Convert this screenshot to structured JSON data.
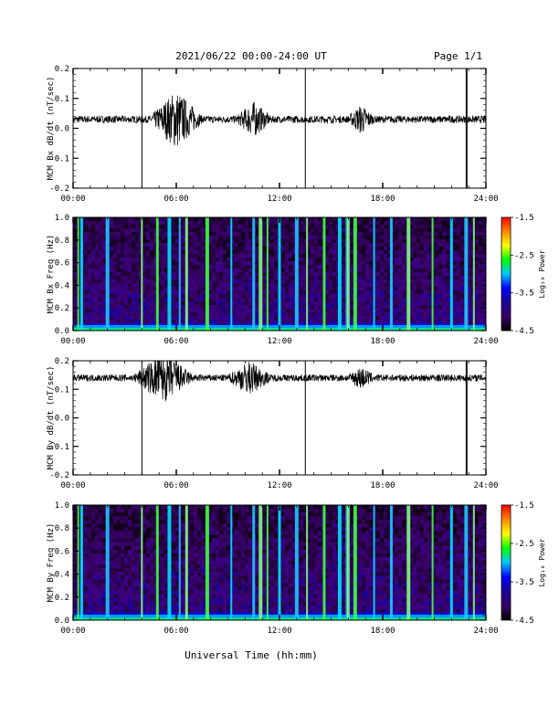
{
  "header": {
    "title": "2021/06/22  00:00-24:00 UT",
    "page": "Page 1/1"
  },
  "footer": {
    "xlabel": "Universal Time (hh:mm)"
  },
  "x_ticks": [
    "00:00",
    "06:00",
    "12:00",
    "18:00",
    "24:00"
  ],
  "chart_data": [
    {
      "type": "line",
      "ylabel": "MCM Bx dB/dt (nT/sec)",
      "xlim_hours": [
        0,
        24
      ],
      "ylim": [
        -0.2,
        0.2
      ],
      "y_ticks": [
        "0.2",
        "0.1",
        "0.0",
        "-0.1",
        "-0.2"
      ],
      "baseline": 0.03,
      "activity_windows_hours": [
        [
          4.5,
          7.5,
          0.09
        ],
        [
          9.5,
          11.5,
          0.05
        ],
        [
          16.0,
          17.5,
          0.04
        ]
      ],
      "spikes_hours": [
        4.0,
        13.5,
        22.85,
        22.9
      ]
    },
    {
      "type": "heatmap",
      "ylabel": "MCM Bx Freq (Hz)",
      "xlim_hours": [
        0,
        24
      ],
      "ylim": [
        0,
        1
      ],
      "y_ticks": [
        "1.0",
        "0.8",
        "0.6",
        "0.4",
        "0.2",
        "0.0"
      ],
      "colorbar": {
        "label": "Log₁₀ Power",
        "ticks": [
          "-1.5",
          "-2.5",
          "-3.5",
          "-4.5"
        ],
        "range": [
          -4.5,
          -1.5
        ],
        "colors": [
          "#000000",
          "#3b0066",
          "#1e0096",
          "#0000ff",
          "#00c8ff",
          "#00ff00",
          "#ffff00",
          "#ff8800",
          "#ff0000"
        ]
      },
      "bright_bands_hours": [
        0.3,
        0.5,
        2.0,
        4.0,
        4.9,
        5.6,
        6.2,
        6.6,
        7.8,
        9.2,
        10.5,
        10.9,
        11.3,
        12.0,
        13.0,
        13.6,
        14.6,
        15.5,
        15.9,
        16.0,
        16.4,
        17.5,
        18.5,
        19.5,
        20.9,
        22.0,
        22.85,
        23.3
      ]
    },
    {
      "type": "line",
      "ylabel": "MCM By dB/dt (nT/sec)",
      "xlim_hours": [
        0,
        24
      ],
      "ylim": [
        -0.2,
        0.2
      ],
      "y_ticks": [
        "0.2",
        "0.1",
        "0.0",
        "-0.1",
        "-0.2"
      ],
      "baseline": 0.14,
      "activity_windows_hours": [
        [
          3.5,
          7.0,
          0.08
        ],
        [
          9.0,
          11.5,
          0.05
        ],
        [
          16.0,
          17.5,
          0.03
        ]
      ],
      "spikes_hours": [
        4.0,
        13.5,
        22.85,
        22.9
      ]
    },
    {
      "type": "heatmap",
      "ylabel": "MCM By Freq (Hz)",
      "xlim_hours": [
        0,
        24
      ],
      "ylim": [
        0,
        1
      ],
      "y_ticks": [
        "1.0",
        "0.8",
        "0.6",
        "0.4",
        "0.2",
        "0.0"
      ],
      "colorbar": {
        "label": "Log₁₀ Power",
        "ticks": [
          "-1.5",
          "-2.5",
          "-3.5",
          "-4.5"
        ],
        "range": [
          -4.5,
          -1.5
        ],
        "colors": [
          "#000000",
          "#3b0066",
          "#1e0096",
          "#0000ff",
          "#00c8ff",
          "#00ff00",
          "#ffff00",
          "#ff8800",
          "#ff0000"
        ]
      },
      "bright_bands_hours": [
        0.3,
        0.5,
        2.0,
        4.0,
        4.9,
        5.6,
        6.2,
        6.6,
        7.8,
        9.2,
        10.5,
        10.9,
        11.3,
        12.0,
        13.0,
        13.6,
        14.6,
        15.5,
        15.9,
        16.0,
        16.4,
        17.5,
        18.5,
        19.5,
        20.9,
        22.0,
        22.85,
        23.3
      ]
    }
  ]
}
